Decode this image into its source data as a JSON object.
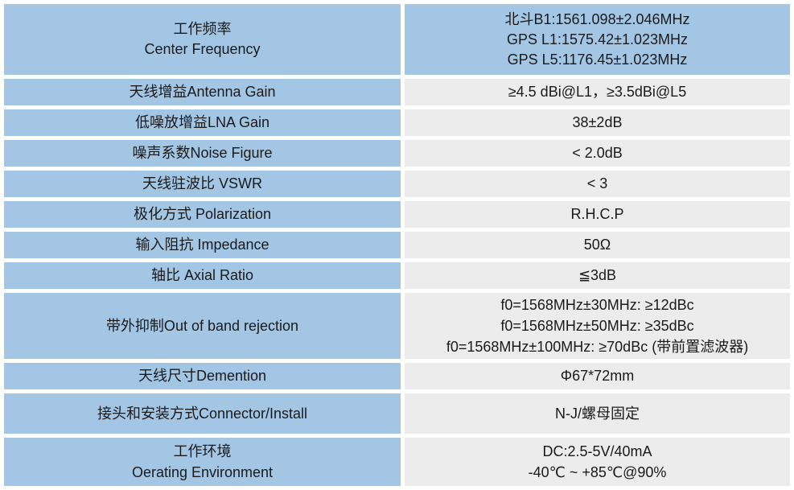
{
  "colors": {
    "label_bg": "#a4c6e5",
    "value_bg": "#ececec",
    "gap": "#ffffff",
    "text": "#1a1a1a"
  },
  "table": {
    "rows": [
      {
        "id": "center-frequency",
        "label_lines": [
          "工作频率",
          "Center Frequency"
        ],
        "value_lines": [
          "北斗B1:1561.098±2.046MHz",
          "GPS L1:1575.42±1.023MHz",
          "GPS L5:1176.45±1.023MHz"
        ]
      },
      {
        "id": "antenna-gain",
        "label_lines": [
          "天线增益Antenna Gain"
        ],
        "value_lines": [
          "≥4.5 dBi@L1，≥3.5dBi@L5"
        ]
      },
      {
        "id": "lna-gain",
        "label_lines": [
          "低噪放增益LNA Gain"
        ],
        "value_lines": [
          "38±2dB"
        ]
      },
      {
        "id": "noise-figure",
        "label_lines": [
          "噪声系数Noise Figure"
        ],
        "value_lines": [
          "< 2.0dB"
        ]
      },
      {
        "id": "vswr",
        "label_lines": [
          "天线驻波比 VSWR"
        ],
        "value_lines": [
          "< 3"
        ]
      },
      {
        "id": "polarization",
        "label_lines": [
          "极化方式 Polarization"
        ],
        "value_lines": [
          "R.H.C.P"
        ]
      },
      {
        "id": "impedance",
        "label_lines": [
          "输入阻抗 Impedance"
        ],
        "value_lines": [
          "50Ω"
        ]
      },
      {
        "id": "axial-ratio",
        "label_lines": [
          "轴比 Axial Ratio"
        ],
        "value_lines": [
          "≦3dB"
        ]
      },
      {
        "id": "band-rejection",
        "label_lines": [
          "带外抑制Out of band rejection"
        ],
        "value_lines": [
          "f0=1568MHz±30MHz: ≥12dBc",
          "f0=1568MHz±50MHz: ≥35dBc",
          "f0=1568MHz±100MHz: ≥70dBc (带前置滤波器)"
        ]
      },
      {
        "id": "dimension",
        "label_lines": [
          "天线尺寸Demention"
        ],
        "value_lines": [
          "Φ67*72mm"
        ]
      },
      {
        "id": "connector-install",
        "label_lines": [
          "接头和安装方式Connector/Install"
        ],
        "value_lines": [
          "N-J/螺母固定"
        ]
      },
      {
        "id": "operating-environment",
        "label_lines": [
          "工作环境",
          "Oerating Environment"
        ],
        "value_lines": [
          "DC:2.5-5V/40mA",
          "-40℃ ~ +85℃@90%"
        ]
      }
    ]
  }
}
